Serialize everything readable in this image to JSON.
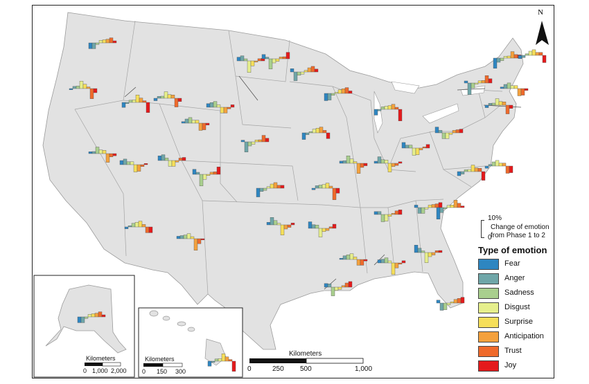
{
  "north_label": "N",
  "legend": {
    "scale_top": "10%",
    "scale_bottom": "0",
    "scale_desc_1": "Change of emotion",
    "scale_desc_2": "from Phase 1 to 2",
    "title": "Type of emotion",
    "items": [
      {
        "label": "Fear",
        "color": "#2e86c1"
      },
      {
        "label": "Anger",
        "color": "#6fa6a8"
      },
      {
        "label": "Sadness",
        "color": "#a9cf8e"
      },
      {
        "label": "Disgust",
        "color": "#e6ef8c"
      },
      {
        "label": "Surprise",
        "color": "#f6df5a"
      },
      {
        "label": "Anticipation",
        "color": "#f4a13d"
      },
      {
        "label": "Trust",
        "color": "#ef6a2b"
      },
      {
        "label": "Joy",
        "color": "#e41a1c"
      }
    ]
  },
  "scale_main": {
    "title": "Kilometers",
    "ticks": [
      "0",
      "250",
      "500",
      "1,000"
    ]
  },
  "scale_alaska": {
    "title": "Kilometers",
    "ticks": [
      "0",
      "1,000",
      "2,000"
    ]
  },
  "scale_hawaii": {
    "title": "Kilometers",
    "ticks": [
      "0",
      "150",
      "300"
    ]
  }
}
